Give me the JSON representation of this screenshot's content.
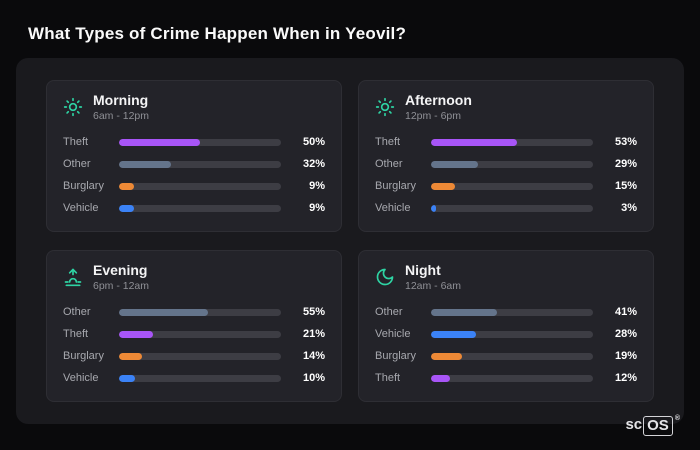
{
  "page": {
    "title": "What Types of Crime Happen When in Yeovil?"
  },
  "branding": {
    "prefix": "sc",
    "suffix": "OS",
    "mark": "®"
  },
  "colors": {
    "theft": "#a855f7",
    "other": "#64748b",
    "burglary": "#ed8936",
    "vehicle": "#3b82f6",
    "icon_accent": "#2ed3a3",
    "track": "#3d3d44"
  },
  "chart_data": [
    {
      "type": "bar",
      "title": "Morning",
      "subtitle": "6am - 12pm",
      "icon": "sun-icon",
      "orientation": "horizontal",
      "xlim": [
        0,
        100
      ],
      "unit": "%",
      "categories": [
        "Theft",
        "Other",
        "Burglary",
        "Vehicle"
      ],
      "values": [
        50,
        32,
        9,
        9
      ]
    },
    {
      "type": "bar",
      "title": "Afternoon",
      "subtitle": "12pm - 6pm",
      "icon": "sun-icon",
      "orientation": "horizontal",
      "xlim": [
        0,
        100
      ],
      "unit": "%",
      "categories": [
        "Theft",
        "Other",
        "Burglary",
        "Vehicle"
      ],
      "values": [
        53,
        29,
        15,
        3
      ]
    },
    {
      "type": "bar",
      "title": "Evening",
      "subtitle": "6pm - 12am",
      "icon": "sunset-icon",
      "orientation": "horizontal",
      "xlim": [
        0,
        100
      ],
      "unit": "%",
      "categories": [
        "Other",
        "Theft",
        "Burglary",
        "Vehicle"
      ],
      "values": [
        55,
        21,
        14,
        10
      ]
    },
    {
      "type": "bar",
      "title": "Night",
      "subtitle": "12am - 6am",
      "icon": "moon-icon",
      "orientation": "horizontal",
      "xlim": [
        0,
        100
      ],
      "unit": "%",
      "categories": [
        "Other",
        "Vehicle",
        "Burglary",
        "Theft"
      ],
      "values": [
        41,
        28,
        19,
        12
      ]
    }
  ]
}
